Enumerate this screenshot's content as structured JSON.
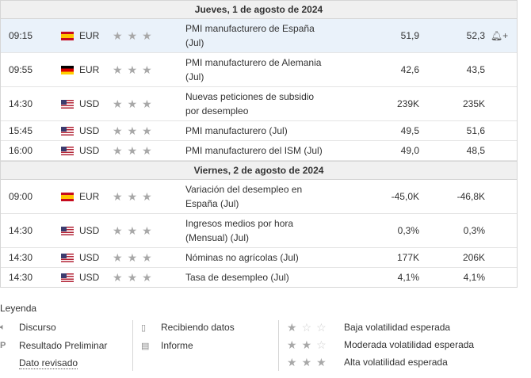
{
  "days": [
    {
      "label": "Jueves, 1 de agosto de 2024",
      "events": [
        {
          "time": "09:15",
          "flag": "es",
          "currency": "EUR",
          "event": [
            "PMI manufacturero de España",
            "(Jul)"
          ],
          "actual": "51,9",
          "previous": "52,3",
          "alert": "🔔︎+",
          "highlight": true
        },
        {
          "time": "09:55",
          "flag": "de",
          "currency": "EUR",
          "event": [
            "PMI manufacturero de Alemania",
            "(Jul)"
          ],
          "actual": "42,6",
          "previous": "43,5",
          "alert": "",
          "highlight": false
        },
        {
          "time": "14:30",
          "flag": "us",
          "currency": "USD",
          "event": [
            "Nuevas peticiones de subsidio",
            "por desempleo"
          ],
          "actual": "239K",
          "previous": "235K",
          "alert": "",
          "highlight": false
        },
        {
          "time": "15:45",
          "flag": "us",
          "currency": "USD",
          "event": [
            "PMI manufacturero (Jul)"
          ],
          "actual": "49,5",
          "previous": "51,6",
          "alert": "",
          "highlight": false
        },
        {
          "time": "16:00",
          "flag": "us",
          "currency": "USD",
          "event": [
            "PMI manufacturero del ISM (Jul)"
          ],
          "actual": "49,0",
          "previous": "48,5",
          "alert": "",
          "highlight": false
        }
      ]
    },
    {
      "label": "Viernes, 2 de agosto de 2024",
      "events": [
        {
          "time": "09:00",
          "flag": "es",
          "currency": "EUR",
          "event": [
            "Variación del desempleo en",
            "España (Jul)"
          ],
          "actual": "-45,0K",
          "previous": "-46,8K",
          "alert": "",
          "highlight": false
        },
        {
          "time": "14:30",
          "flag": "us",
          "currency": "USD",
          "event": [
            "Ingresos medios por hora",
            "(Mensual) (Jul)"
          ],
          "actual": "0,3%",
          "previous": "0,3%",
          "alert": "",
          "highlight": false
        },
        {
          "time": "14:30",
          "flag": "us",
          "currency": "USD",
          "event": [
            "Nóminas no agrícolas (Jul)"
          ],
          "actual": "177K",
          "previous": "206K",
          "alert": "",
          "highlight": false
        },
        {
          "time": "14:30",
          "flag": "us",
          "currency": "USD",
          "event": [
            "Tasa de desempleo (Jul)"
          ],
          "actual": "4,1%",
          "previous": "4,1%",
          "alert": "",
          "highlight": false
        }
      ]
    }
  ],
  "importance_stars": 3,
  "legend": {
    "title": "Leyenda",
    "speech": "Discurso",
    "preliminary": "Resultado Preliminar",
    "revised": "Dato revisado",
    "receiving": "Recibiendo datos",
    "report": "Informe",
    "low": "Baja volatilidad esperada",
    "moderate": "Moderada volatilidad esperada",
    "high": "Alta volatilidad esperada",
    "icon_speech": "🔈︎",
    "icon_preliminary": "P",
    "icon_receiving": "▯",
    "icon_report": "▤"
  }
}
